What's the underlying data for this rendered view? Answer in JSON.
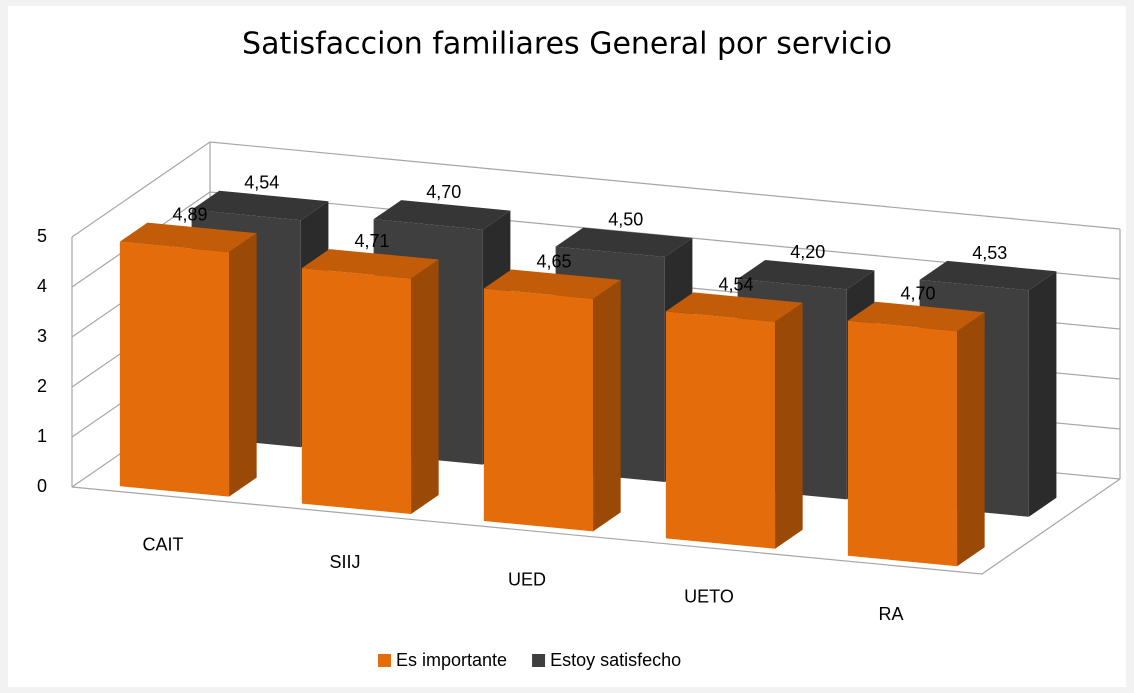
{
  "chart_data": {
    "type": "bar3d",
    "title": "Satisfaccion familiares General por servicio",
    "categories": [
      "CAIT",
      "SIIJ",
      "UED",
      "UETO",
      "RA"
    ],
    "series": [
      {
        "name": "Es importante",
        "color": "#e46c0a",
        "values": [
          4.89,
          4.71,
          4.65,
          4.54,
          4.7
        ],
        "value_labels": [
          "4,89",
          "4,71",
          "4,65",
          "4,54",
          "4,70"
        ]
      },
      {
        "name": "Estoy satisfecho",
        "color": "#3f3f3f",
        "values": [
          4.54,
          4.7,
          4.5,
          4.2,
          4.53
        ],
        "value_labels": [
          "4,54",
          "4,70",
          "4,50",
          "4,20",
          "4,53"
        ]
      }
    ],
    "ylim": [
      0,
      5
    ],
    "yticks": [
      0,
      1,
      2,
      3,
      4,
      5
    ],
    "grid": true,
    "legend": "bottom"
  }
}
